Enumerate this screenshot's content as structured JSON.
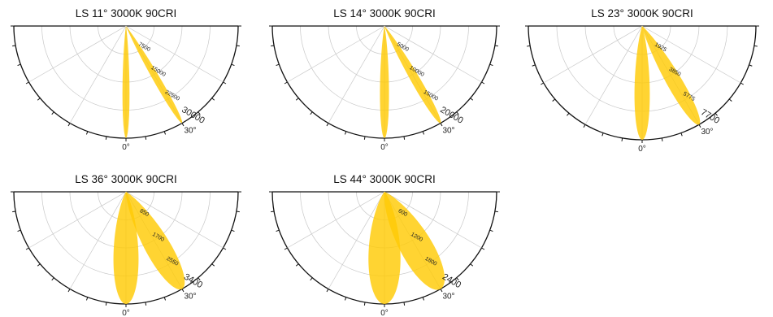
{
  "chart_data": [
    {
      "type": "polar",
      "title": "LS 11° 3000K 90CRI",
      "radial_ticks": [
        "7500",
        "15000",
        "22500",
        "30000"
      ],
      "rmax": 30000,
      "angle_labels": [
        "0°",
        "30°"
      ],
      "series": [
        {
          "direction_deg": 0,
          "peak": 30000,
          "half_width_deg": 3.5
        },
        {
          "direction_deg": 30,
          "peak": 30000,
          "half_width_deg": 3.5
        }
      ],
      "fill_color": "#FFCB05"
    },
    {
      "type": "polar",
      "title": "LS 14° 3000K 90CRI",
      "radial_ticks": [
        "5000",
        "10000",
        "15000",
        "20000"
      ],
      "rmax": 20000,
      "angle_labels": [
        "0°",
        "30°"
      ],
      "series": [
        {
          "direction_deg": 0,
          "peak": 20000,
          "half_width_deg": 4.5
        },
        {
          "direction_deg": 30,
          "peak": 20000,
          "half_width_deg": 4.5
        }
      ],
      "fill_color": "#FFCB05"
    },
    {
      "type": "polar",
      "title": "LS 23° 3000K 90CRI",
      "radial_ticks": [
        "1925",
        "3850",
        "5775",
        "7700"
      ],
      "rmax": 7700,
      "angle_labels": [
        "0°",
        "30°"
      ],
      "series": [
        {
          "direction_deg": 0,
          "peak": 7700,
          "half_width_deg": 7.5
        },
        {
          "direction_deg": 30,
          "peak": 7700,
          "half_width_deg": 7.5
        }
      ],
      "fill_color": "#FFCB05"
    },
    {
      "type": "polar",
      "title": "LS 36° 3000K 90CRI",
      "radial_ticks": [
        "850",
        "1700",
        "2550",
        "3400"
      ],
      "rmax": 3400,
      "angle_labels": [
        "0°",
        "30°"
      ],
      "series": [
        {
          "direction_deg": 0,
          "peak": 3400,
          "half_width_deg": 12.5
        },
        {
          "direction_deg": 30,
          "peak": 3400,
          "half_width_deg": 12.5
        }
      ],
      "fill_color": "#FFCB05"
    },
    {
      "type": "polar",
      "title": "LS 44° 3000K 90CRI",
      "radial_ticks": [
        "600",
        "1200",
        "1800",
        "2400"
      ],
      "rmax": 2400,
      "angle_labels": [
        "0°",
        "30°"
      ],
      "series": [
        {
          "direction_deg": 0,
          "peak": 2400,
          "half_width_deg": 16
        },
        {
          "direction_deg": 30,
          "peak": 2400,
          "half_width_deg": 16
        }
      ],
      "fill_color": "#FFCB05"
    }
  ]
}
